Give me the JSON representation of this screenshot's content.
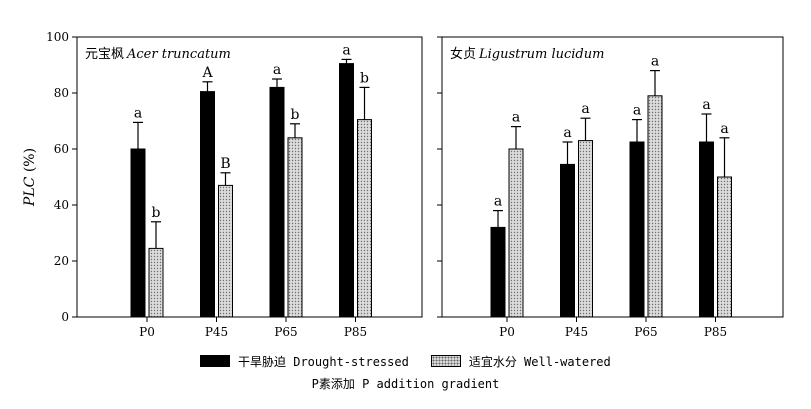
{
  "chart_data": {
    "type": "bar",
    "ylabel": "PLC (%)",
    "xlabel": "P素添加 P addition gradient",
    "ylim": [
      0,
      100
    ],
    "yticks": [
      0,
      20,
      40,
      60,
      80,
      100
    ],
    "legend": {
      "placement": "bottom",
      "entries": [
        "干旱胁迫 Drought-stressed",
        "适宜水分 Well-watered"
      ]
    },
    "series_colors": [
      "#000000",
      "#d4d4d4"
    ],
    "panels": [
      {
        "title_cn": "元宝枫",
        "title_latin": "Acer truncatum",
        "categories": [
          "P0",
          "P45",
          "P65",
          "P85"
        ],
        "series": [
          {
            "name": "干旱胁迫 Drought-stressed",
            "values": [
              60,
              80.5,
              82,
              90.5
            ],
            "errors": [
              9.5,
              3.5,
              3,
              1.5
            ],
            "labels": [
              "a",
              "A",
              "a",
              "a"
            ]
          },
          {
            "name": "适宜水分 Well-watered",
            "values": [
              24.5,
              47,
              64,
              70.5
            ],
            "errors": [
              9.5,
              4.5,
              5,
              11.5
            ],
            "labels": [
              "b",
              "B",
              "b",
              "b"
            ]
          }
        ]
      },
      {
        "title_cn": "女贞",
        "title_latin": "Ligustrum lucidum",
        "categories": [
          "P0",
          "P45",
          "P65",
          "P85"
        ],
        "series": [
          {
            "name": "干旱胁迫 Drought-stressed",
            "values": [
              32,
              54.5,
              62.5,
              62.5
            ],
            "errors": [
              6,
              8,
              8,
              10
            ],
            "labels": [
              "a",
              "a",
              "a",
              "a"
            ]
          },
          {
            "name": "适宜水分 Well-watered",
            "values": [
              60,
              63,
              79,
              50
            ],
            "errors": [
              8,
              8,
              9,
              14
            ],
            "labels": [
              "a",
              "a",
              "a",
              "a"
            ]
          }
        ]
      }
    ]
  }
}
